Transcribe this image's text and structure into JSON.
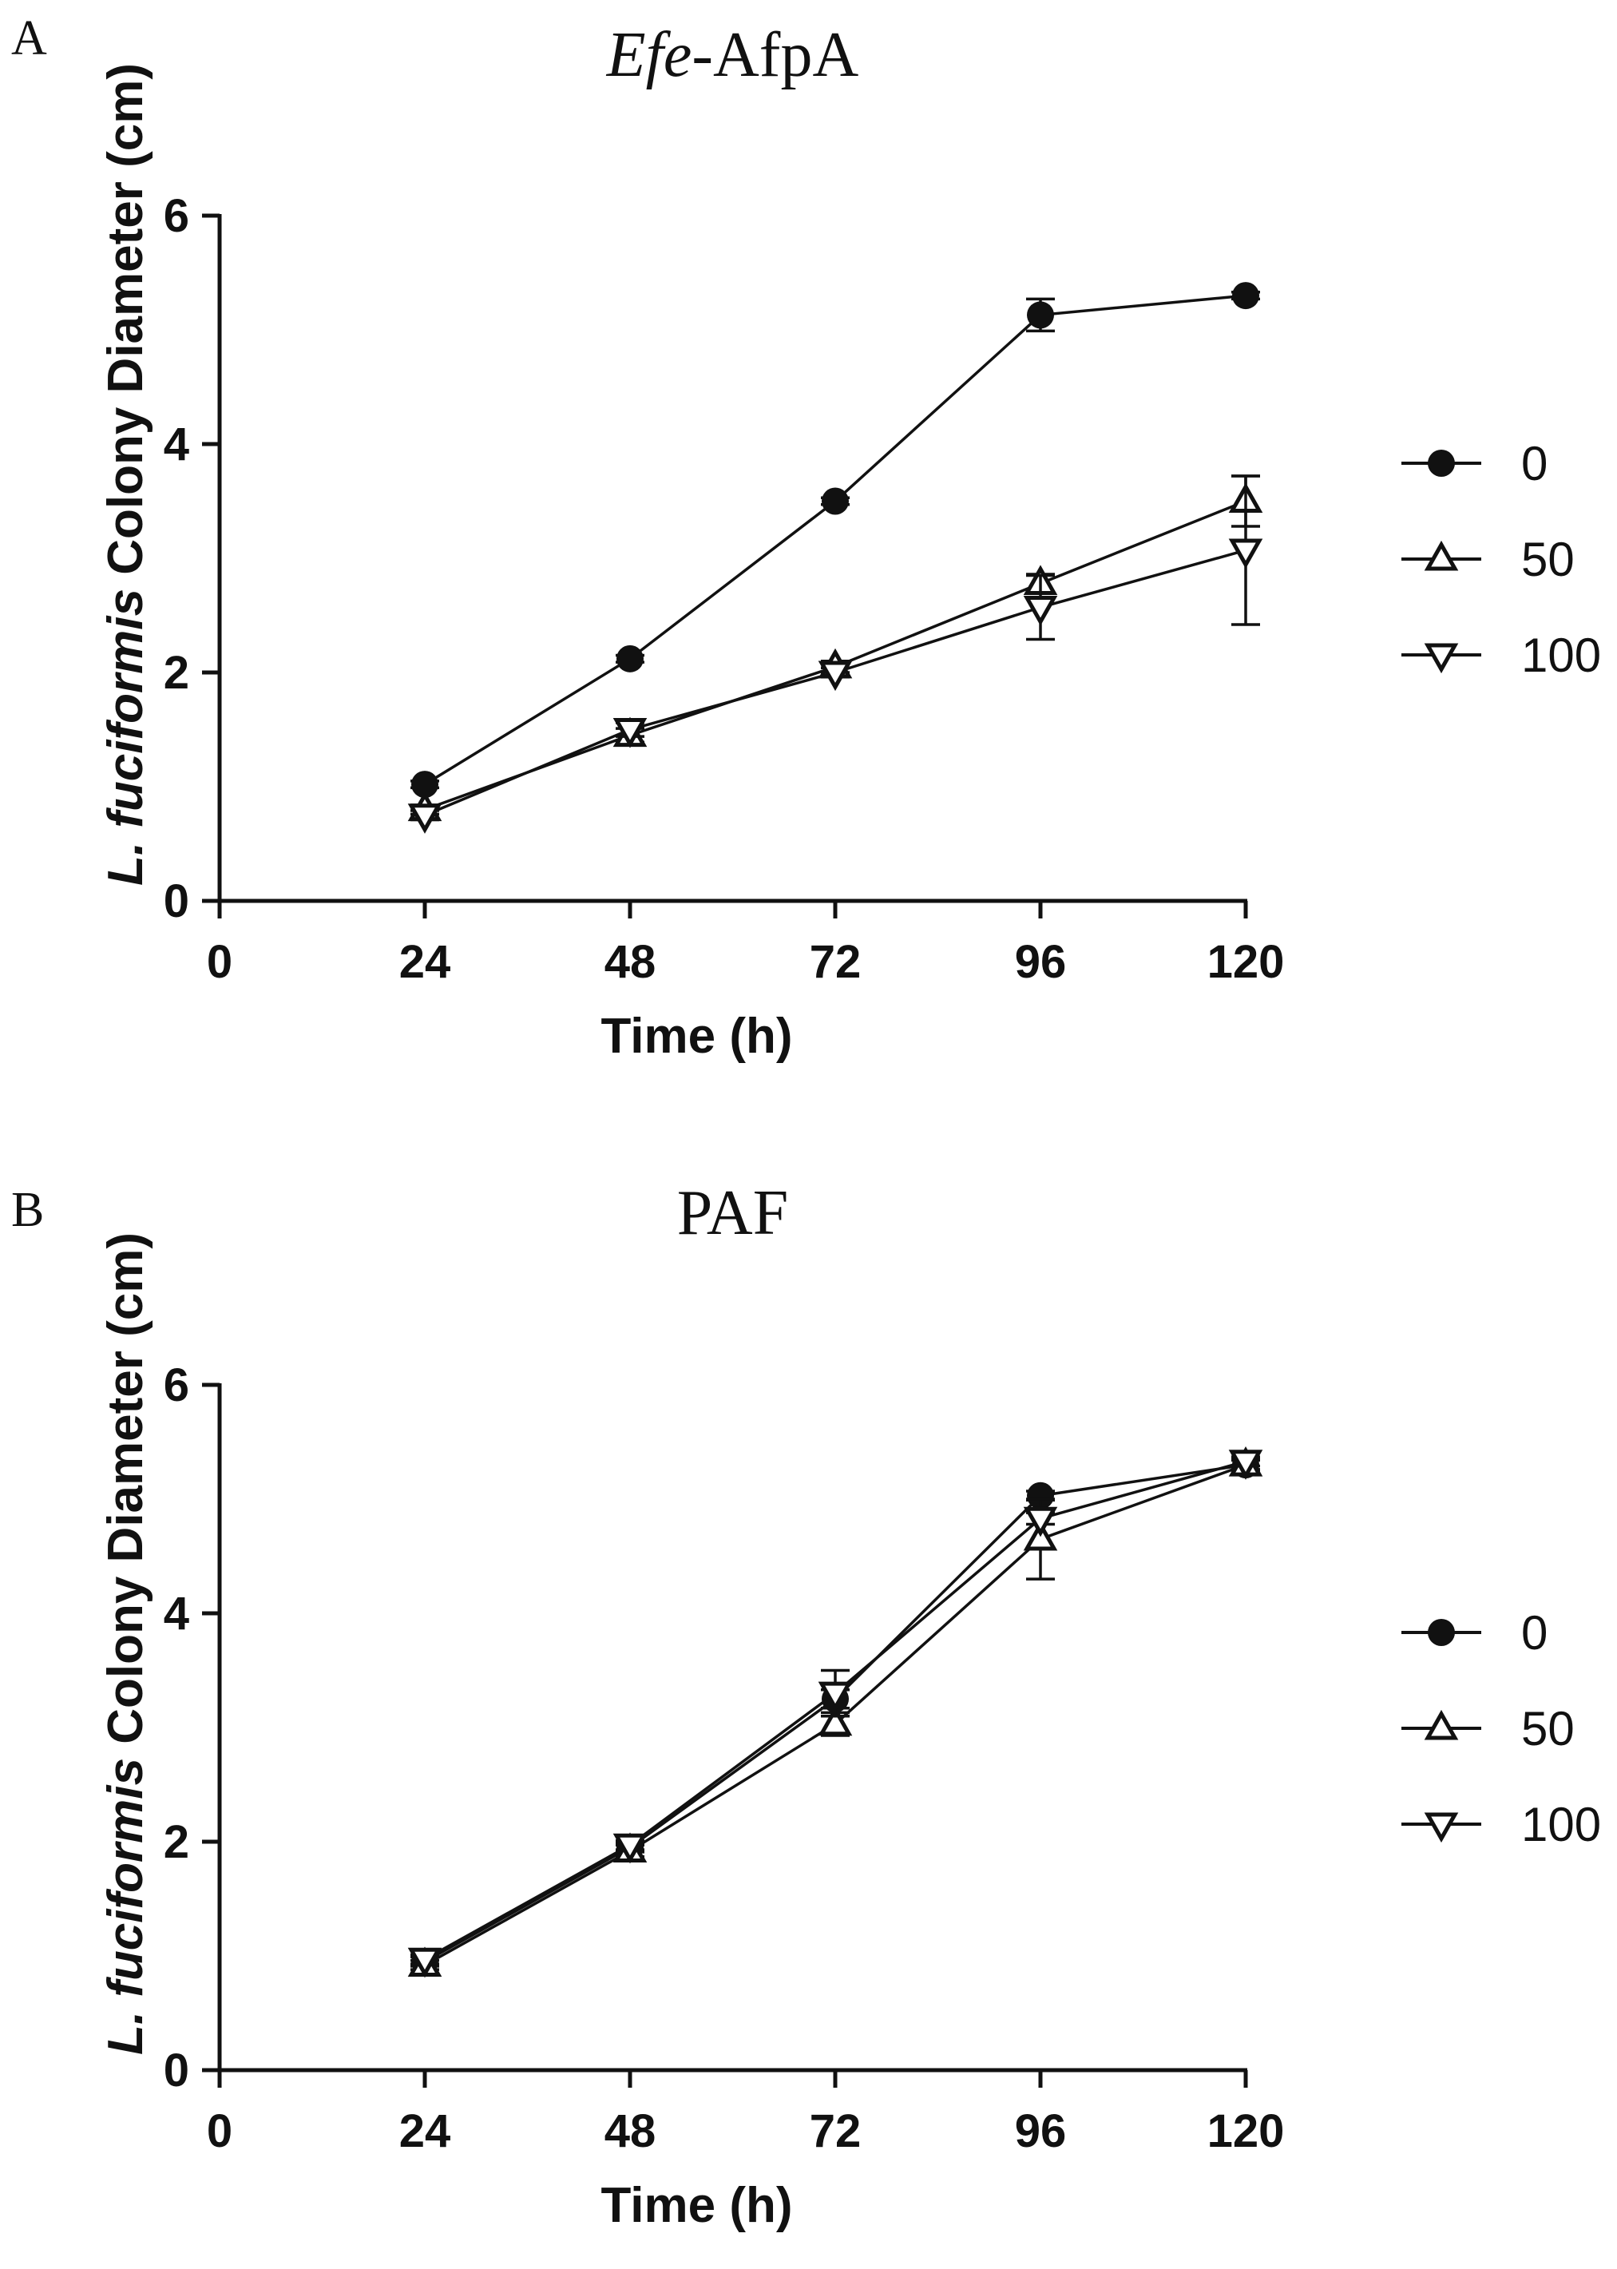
{
  "chart_data": [
    {
      "panel": "A",
      "type": "line",
      "title_parts": [
        "Efe",
        "-AfpA"
      ],
      "xlabel": "Time (h)",
      "ylabel_parts": [
        "L. fuciformis",
        " Colony Diameter (cm)"
      ],
      "x": [
        24,
        48,
        72,
        96,
        120
      ],
      "xticks": [
        "0",
        "24",
        "48",
        "72",
        "96",
        "120"
      ],
      "yticks": [
        "0",
        "2",
        "4",
        "6"
      ],
      "xlim": [
        0,
        120
      ],
      "ylim": [
        0,
        6
      ],
      "series": [
        {
          "name": "0",
          "marker": "circle",
          "values": [
            1.02,
            2.12,
            3.5,
            5.13,
            5.3
          ],
          "errors": [
            0.03,
            0.03,
            0.03,
            0.14,
            0.03
          ]
        },
        {
          "name": "50",
          "marker": "triangle-up",
          "values": [
            0.8,
            1.45,
            2.05,
            2.78,
            3.5
          ],
          "errors": [
            0.04,
            0.06,
            0.05,
            0.08,
            0.22
          ]
        },
        {
          "name": "100",
          "marker": "triangle-down",
          "values": [
            0.75,
            1.5,
            2.0,
            2.57,
            3.07
          ],
          "errors": [
            0.04,
            0.06,
            0.04,
            0.28,
            0.65
          ]
        }
      ]
    },
    {
      "panel": "B",
      "type": "line",
      "title_parts": [
        "",
        "PAF"
      ],
      "xlabel": "Time (h)",
      "ylabel_parts": [
        "L. fuciformis",
        " Colony Diameter (cm)"
      ],
      "x": [
        24,
        48,
        72,
        96,
        120
      ],
      "xticks": [
        "0",
        "24",
        "48",
        "72",
        "96",
        "120"
      ],
      "yticks": [
        "0",
        "2",
        "4",
        "6"
      ],
      "xlim": [
        0,
        120
      ],
      "ylim": [
        0,
        6
      ],
      "series": [
        {
          "name": "0",
          "marker": "circle",
          "values": [
            0.95,
            1.95,
            3.25,
            5.03,
            5.3
          ],
          "errors": [
            0.04,
            0.04,
            0.08,
            0.04,
            0.04
          ]
        },
        {
          "name": "50",
          "marker": "triangle-up",
          "values": [
            0.92,
            1.92,
            3.03,
            4.65,
            5.3
          ],
          "errors": [
            0.04,
            0.05,
            0.1,
            0.35,
            0.05
          ]
        },
        {
          "name": "100",
          "marker": "triangle-down",
          "values": [
            0.97,
            1.97,
            3.3,
            4.83,
            5.33
          ],
          "errors": [
            0.04,
            0.04,
            0.2,
            0.05,
            0.04
          ]
        }
      ]
    }
  ]
}
